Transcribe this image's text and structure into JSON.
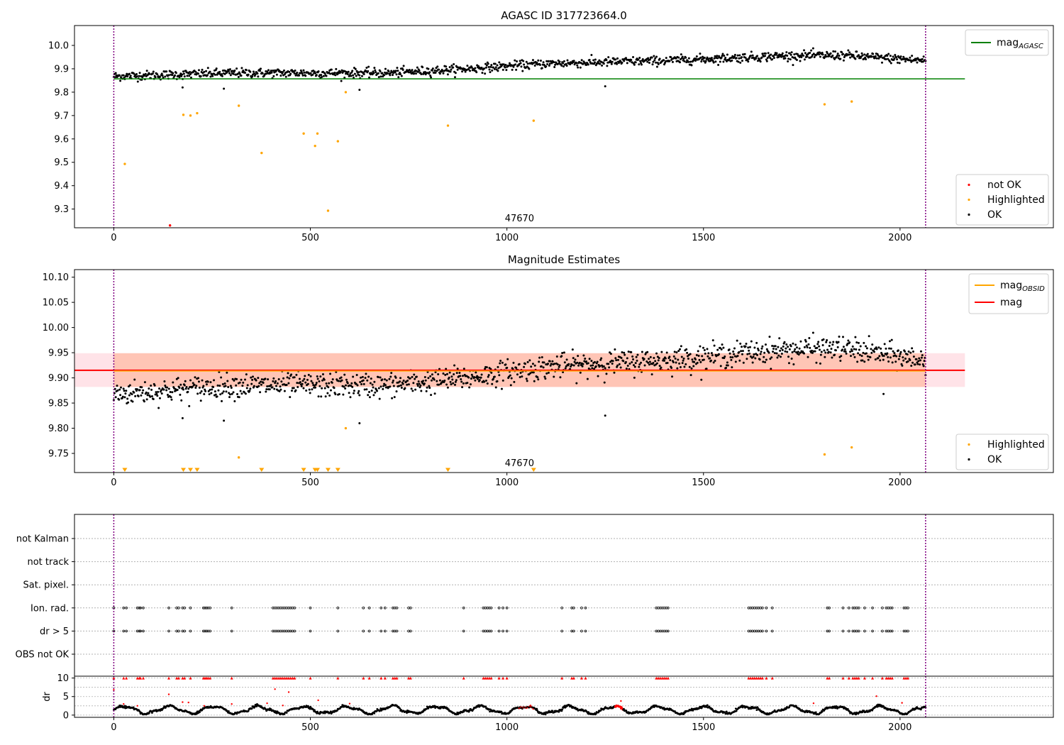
{
  "colors": {
    "ok": "#000000",
    "not_ok": "#ff0000",
    "highlighted": "#ffa500",
    "mag_agasc": "#008000",
    "mag": "#ff0000",
    "mag_obsid": "#ffa500",
    "band_outer": "#ffc0cb",
    "band_inner": "#ffa07a",
    "window_line": "#800080",
    "grid": "#b0b0b0"
  },
  "chart_data": [
    {
      "type": "scatter",
      "title": "AGASC ID 317723664.0",
      "xlim": [
        -100,
        2390
      ],
      "ylim": [
        9.22,
        10.085
      ],
      "xticks": [
        0,
        500,
        1000,
        1500,
        2000
      ],
      "yticks": [
        9.3,
        9.4,
        9.5,
        9.6,
        9.7,
        9.8,
        9.9,
        10.0
      ],
      "ytick_labels": [
        "9.3",
        "9.4",
        "9.5",
        "9.6",
        "9.7",
        "9.8",
        "9.9",
        "10.0"
      ],
      "obsid_boundaries": [
        0,
        2065
      ],
      "obsid_label": {
        "text": "47670",
        "x": 1032
      },
      "lines": [
        {
          "label": "mag",
          "label_sub": "AGASC",
          "y": 9.857,
          "x0": 0,
          "x1": 2165
        }
      ],
      "legend_top": [
        {
          "label": "mag",
          "sub": "AGASC",
          "color_key": "mag_agasc",
          "style": "line"
        }
      ],
      "legend_bottom": [
        {
          "label": "not OK",
          "color_key": "not_ok",
          "style": "dot"
        },
        {
          "label": "Highlighted",
          "color_key": "highlighted",
          "style": "dot"
        },
        {
          "label": "OK",
          "color_key": "ok",
          "style": "dot"
        }
      ],
      "ok_trend": [
        [
          0,
          9.868
        ],
        [
          300,
          9.882
        ],
        [
          700,
          9.882
        ],
        [
          900,
          9.9
        ],
        [
          1100,
          9.922
        ],
        [
          1400,
          9.935
        ],
        [
          1700,
          9.955
        ],
        [
          1850,
          9.958
        ],
        [
          2065,
          9.935
        ]
      ],
      "ok_scatter": 0.013,
      "ok_count": 1250,
      "ok_x_range": [
        0,
        2065
      ],
      "highlighted": [
        [
          28,
          9.493
        ],
        [
          177,
          9.703
        ],
        [
          195,
          9.7
        ],
        [
          212,
          9.71
        ],
        [
          318,
          9.742
        ],
        [
          376,
          9.54
        ],
        [
          483,
          9.623
        ],
        [
          512,
          9.57
        ],
        [
          518,
          9.623
        ],
        [
          545,
          9.293
        ],
        [
          570,
          9.59
        ],
        [
          590,
          9.8
        ],
        [
          850,
          9.657
        ],
        [
          1068,
          9.678
        ],
        [
          1808,
          9.748
        ],
        [
          1877,
          9.76
        ]
      ],
      "not_ok": [
        [
          143,
          9.23
        ]
      ],
      "outliers": [
        [
          175,
          9.82
        ],
        [
          280,
          9.815
        ],
        [
          625,
          9.81
        ],
        [
          1250,
          9.825
        ]
      ]
    },
    {
      "type": "scatter",
      "title": "Magnitude Estimates",
      "xlim": [
        -100,
        2390
      ],
      "ylim": [
        9.712,
        10.115
      ],
      "xticks": [
        0,
        500,
        1000,
        1500,
        2000
      ],
      "yticks": [
        9.75,
        9.8,
        9.85,
        9.9,
        9.95,
        10.0,
        10.05,
        10.1
      ],
      "ytick_labels": [
        "9.75",
        "9.80",
        "9.85",
        "9.90",
        "9.95",
        "10.00",
        "10.05",
        "10.10"
      ],
      "obsid_boundaries": [
        0,
        2065
      ],
      "obsid_label": {
        "text": "47670",
        "x": 1032
      },
      "mag": 9.915,
      "band_outer": [
        9.882,
        9.949
      ],
      "band_inner": [
        9.882,
        9.949
      ],
      "band_x": [
        -100,
        2165
      ],
      "inner_x": [
        0,
        2065
      ],
      "legend_top": [
        {
          "label": "mag",
          "sub": "OBSID",
          "color_key": "mag_obsid",
          "style": "line"
        },
        {
          "label": "mag",
          "sub": "",
          "color_key": "mag",
          "style": "line"
        }
      ],
      "legend_bottom": [
        {
          "label": "Highlighted",
          "color_key": "highlighted",
          "style": "dot"
        },
        {
          "label": "OK",
          "color_key": "ok",
          "style": "dot"
        }
      ],
      "ok_trend": [
        [
          0,
          9.868
        ],
        [
          300,
          9.885
        ],
        [
          700,
          9.885
        ],
        [
          900,
          9.9
        ],
        [
          1100,
          9.922
        ],
        [
          1400,
          9.935
        ],
        [
          1700,
          9.955
        ],
        [
          1850,
          9.958
        ],
        [
          2065,
          9.935
        ]
      ],
      "ok_scatter": 0.016,
      "ok_count": 1250,
      "ok_x_range": [
        0,
        2065
      ],
      "highlighted": [
        [
          318,
          9.742
        ],
        [
          590,
          9.8
        ],
        [
          1808,
          9.748
        ],
        [
          1877,
          9.762
        ]
      ],
      "down_markers": [
        28,
        177,
        195,
        212,
        376,
        483,
        512,
        518,
        545,
        570,
        850,
        1068
      ],
      "outliers": [
        [
          175,
          9.82
        ],
        [
          280,
          9.815
        ],
        [
          625,
          9.81
        ],
        [
          1250,
          9.825
        ],
        [
          1958,
          9.868
        ]
      ]
    },
    {
      "type": "scatter",
      "title": "",
      "xlim": [
        -100,
        2390
      ],
      "flag_rows": [
        "not Kalman",
        "not track",
        "Sat. pixel.",
        "Ion. rad.",
        "dr > 5",
        "OBS not OK"
      ],
      "flag_x": [
        0,
        25,
        32,
        60,
        65,
        68,
        75,
        140,
        160,
        165,
        175,
        180,
        195,
        228,
        232,
        236,
        240,
        245,
        300,
        405,
        410,
        415,
        420,
        425,
        430,
        435,
        440,
        445,
        450,
        455,
        460,
        500,
        570,
        635,
        650,
        680,
        690,
        710,
        715,
        720,
        750,
        755,
        890,
        940,
        945,
        950,
        955,
        960,
        980,
        990,
        1000,
        1140,
        1165,
        1170,
        1190,
        1200,
        1380,
        1385,
        1390,
        1395,
        1400,
        1405,
        1410,
        1615,
        1620,
        1625,
        1630,
        1635,
        1640,
        1645,
        1650,
        1660,
        1675,
        1815,
        1820,
        1855,
        1870,
        1880,
        1885,
        1890,
        1895,
        1910,
        1930,
        1955,
        1965,
        1970,
        1975,
        1980,
        2010,
        2015,
        2020
      ],
      "flag_rows_used": [
        "Ion. rad.",
        "dr > 5"
      ]
    },
    {
      "type": "scatter",
      "title": "",
      "ylabel": "dr",
      "xlim": [
        -100,
        2390
      ],
      "ylim": [
        -0.6,
        10.5
      ],
      "xticks": [
        0,
        500,
        1000,
        1500,
        2000
      ],
      "yticks": [
        0,
        5,
        10
      ],
      "ytick_labels": [
        "0",
        "5",
        "10"
      ],
      "dr_ok_scatter": 1.0,
      "dr_count": 1400,
      "red_spikes": [
        [
          0,
          6.8
        ],
        [
          25,
          3.0
        ],
        [
          60,
          2.5
        ],
        [
          140,
          5.6
        ],
        [
          175,
          3.5
        ],
        [
          190,
          3.4
        ],
        [
          230,
          2.5
        ],
        [
          300,
          3.0
        ],
        [
          390,
          3.2
        ],
        [
          410,
          7.0
        ],
        [
          430,
          2.6
        ],
        [
          445,
          6.2
        ],
        [
          520,
          4.0
        ],
        [
          600,
          3.1
        ],
        [
          1060,
          2.6
        ],
        [
          1290,
          3.8
        ],
        [
          1780,
          3.2
        ],
        [
          1940,
          5.1
        ],
        [
          2005,
          3.3
        ]
      ],
      "red_triangles_x": [
        0,
        25,
        32,
        60,
        65,
        68,
        75,
        140,
        160,
        165,
        175,
        180,
        195,
        228,
        232,
        236,
        240,
        245,
        300,
        405,
        410,
        415,
        420,
        425,
        430,
        435,
        440,
        445,
        450,
        455,
        460,
        500,
        570,
        635,
        650,
        680,
        690,
        710,
        715,
        720,
        750,
        755,
        890,
        940,
        945,
        950,
        955,
        960,
        980,
        990,
        1000,
        1140,
        1165,
        1170,
        1190,
        1200,
        1380,
        1385,
        1390,
        1395,
        1400,
        1405,
        1410,
        1615,
        1620,
        1625,
        1630,
        1635,
        1640,
        1645,
        1650,
        1660,
        1675,
        1815,
        1820,
        1855,
        1870,
        1880,
        1885,
        1890,
        1895,
        1910,
        1930,
        1955,
        1965,
        1970,
        1975,
        1980,
        2010,
        2015,
        2020
      ]
    }
  ]
}
